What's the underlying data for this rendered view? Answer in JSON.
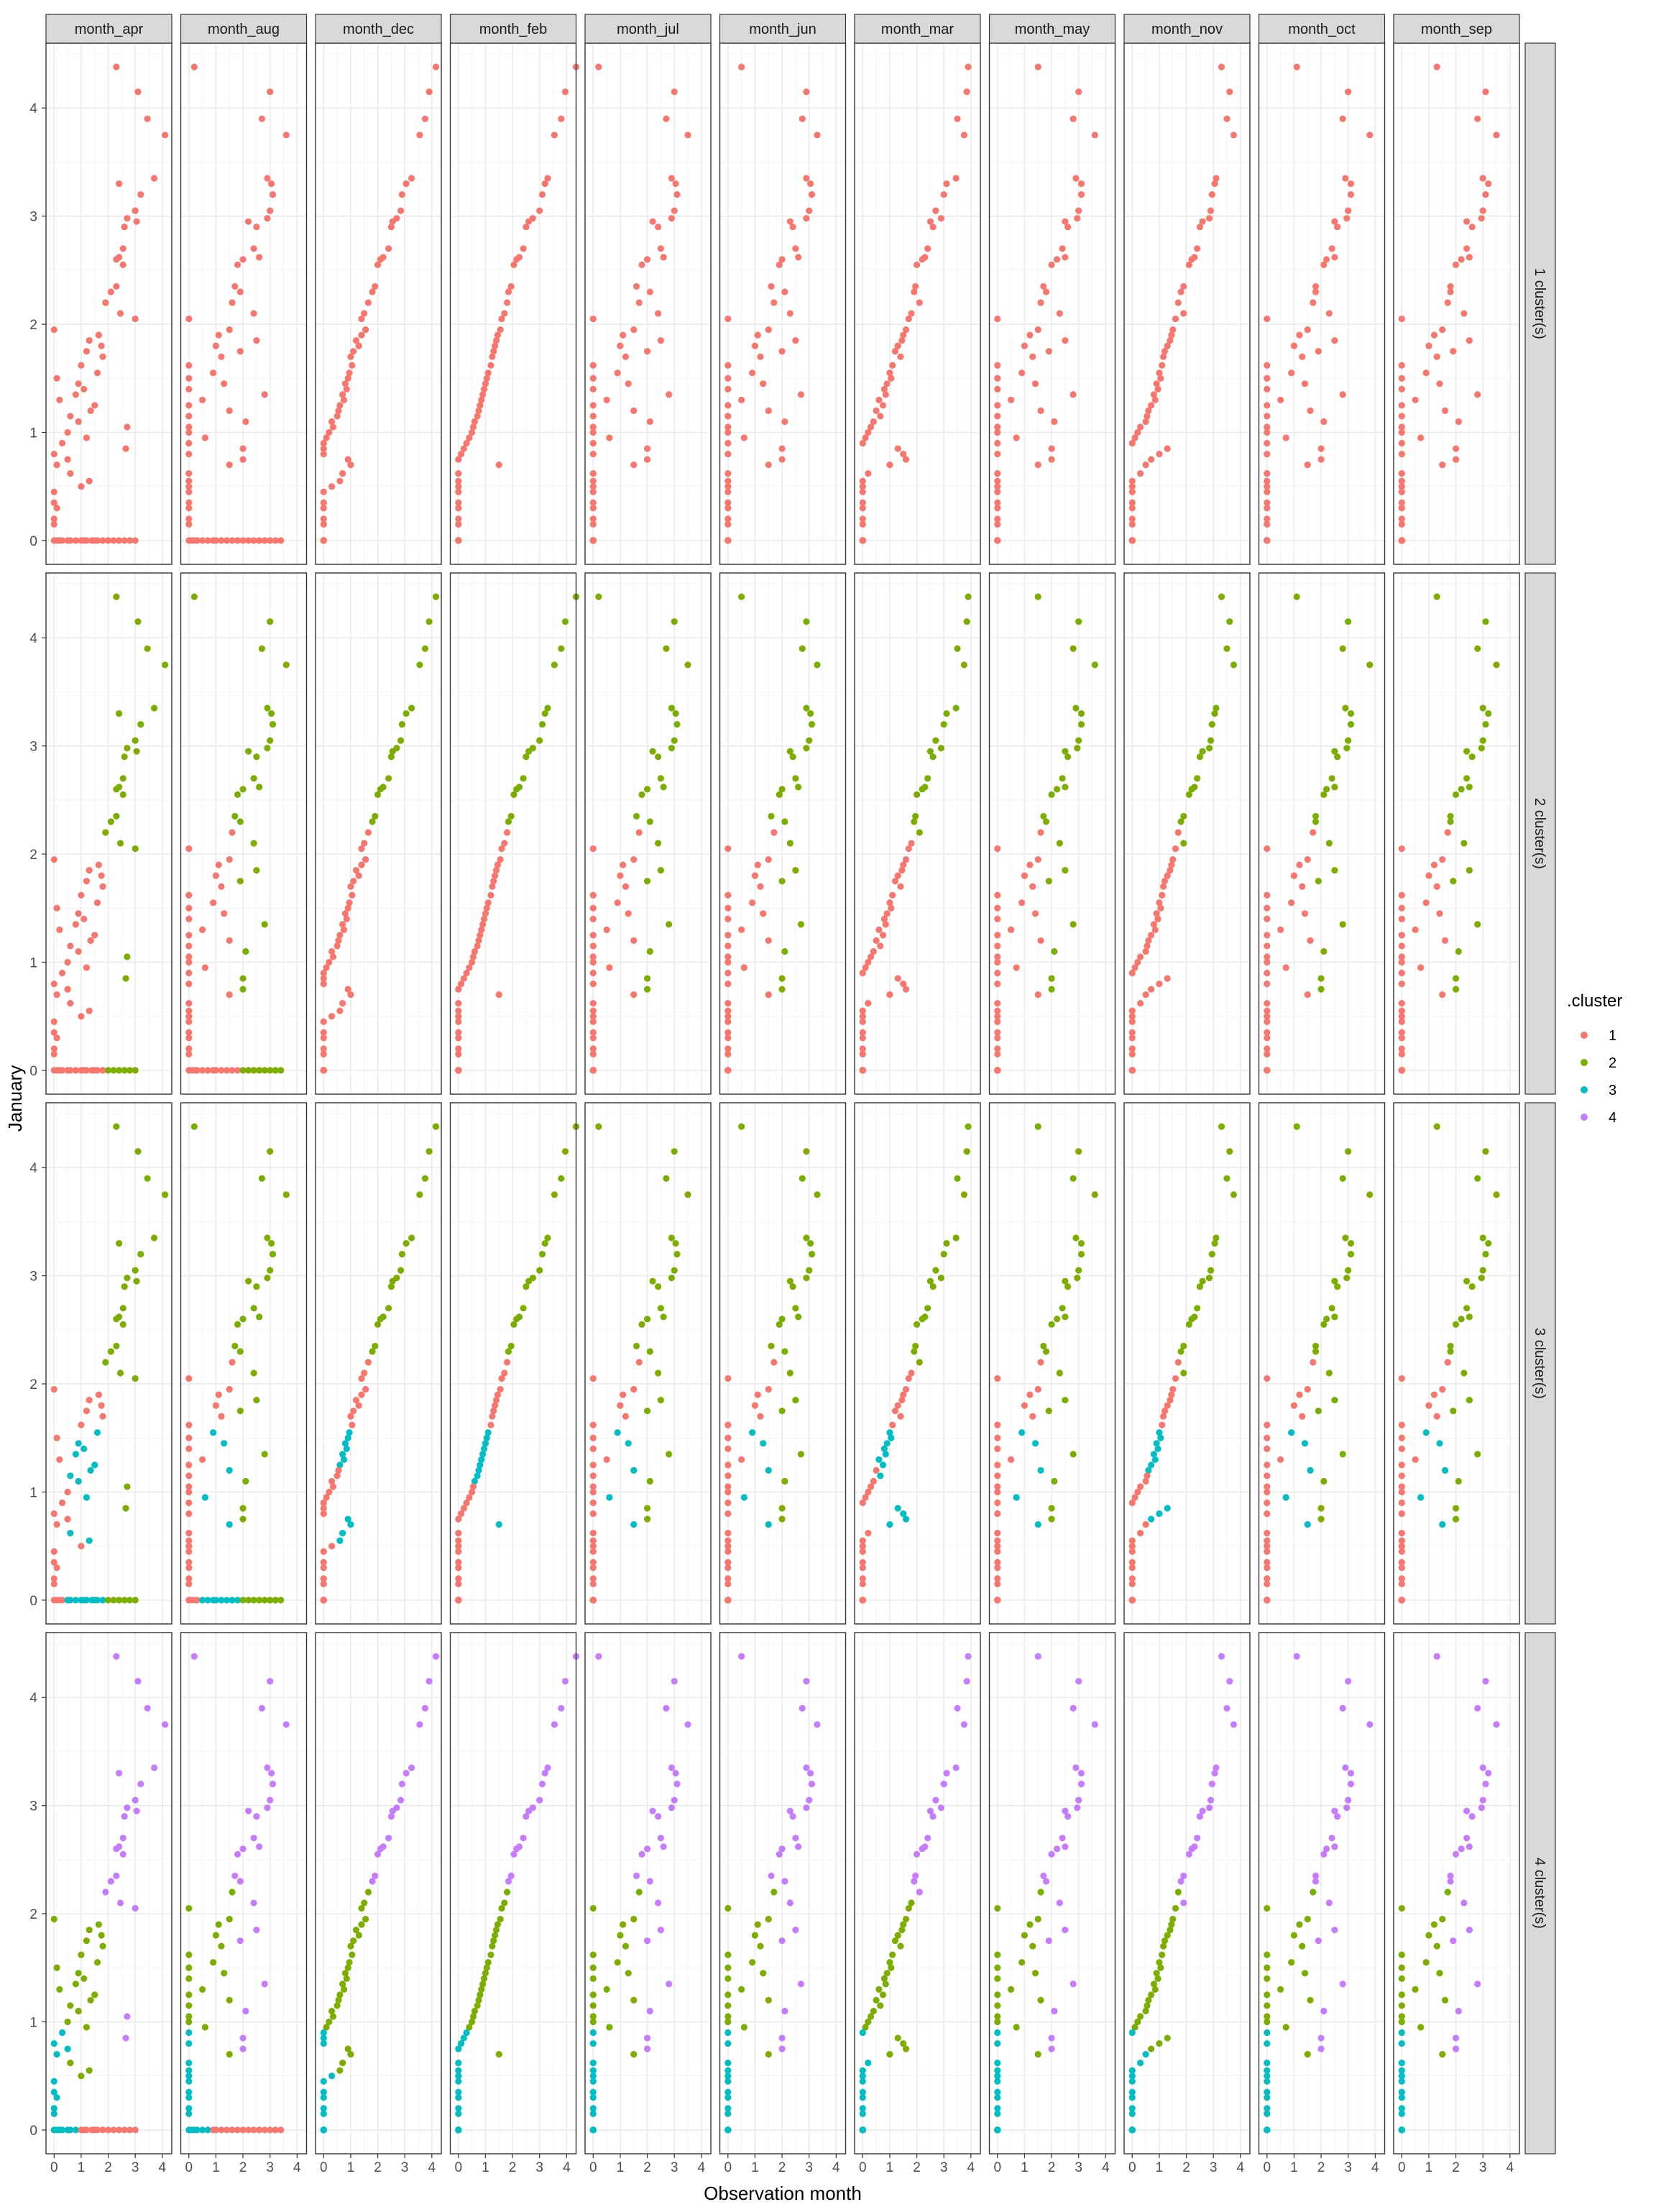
{
  "chart_data": {
    "type": "scatter",
    "facet_columns": [
      "month_apr",
      "month_aug",
      "month_dec",
      "month_feb",
      "month_jul",
      "month_jun",
      "month_mar",
      "month_may",
      "month_nov",
      "month_oct",
      "month_sep"
    ],
    "facet_rows": [
      "1 cluster(s)",
      "2 cluster(s)",
      "3 cluster(s)",
      "4 cluster(s)"
    ],
    "xlabel": "Observation month",
    "ylabel": "January",
    "x_ticks": [
      0,
      1,
      2,
      3,
      4
    ],
    "y_ticks": [
      0,
      1,
      2,
      3,
      4
    ],
    "xlim": [
      -0.3,
      4.35
    ],
    "ylim": [
      -0.22,
      4.6
    ],
    "grid": true,
    "legend": {
      "title": ".cluster",
      "position": "right",
      "entries": [
        {
          "label": "1",
          "color": "#F8766D"
        },
        {
          "label": "2",
          "color": "#7CAE00"
        },
        {
          "label": "3",
          "color": "#00BFC4"
        },
        {
          "label": "4",
          "color": "#C77CFF"
        }
      ]
    },
    "series_note_free": "",
    "points": {
      "january": [
        4.38,
        4.15,
        3.9,
        3.75,
        3.35,
        3.3,
        3.2,
        3.05,
        2.98,
        2.95,
        2.9,
        2.7,
        2.62,
        2.6,
        2.55,
        2.35,
        2.3,
        2.2,
        2.1,
        2.05,
        1.95,
        1.9,
        1.85,
        1.8,
        1.75,
        1.7,
        1.62,
        1.55,
        1.5,
        1.45,
        1.4,
        1.35,
        1.3,
        1.25,
        1.2,
        1.15,
        1.1,
        1.05,
        1.0,
        0.95,
        0.9,
        0.85,
        0.8,
        0.75,
        0.7,
        0.62,
        0.55,
        0.5,
        0.45,
        0.35,
        0.3,
        0.2,
        0.15,
        0.0,
        0.0,
        0.0,
        0.0,
        0.0,
        0.0,
        0.0,
        0.0,
        0.0,
        0.0,
        0.0,
        0.0,
        0.0,
        0.0,
        0.0,
        0.0,
        0.0,
        0.0,
        0.0,
        0.0
      ],
      "month_apr": [
        2.3,
        3.1,
        3.45,
        4.1,
        3.7,
        2.4,
        3.2,
        3.0,
        2.7,
        3.05,
        2.6,
        2.55,
        2.4,
        2.3,
        2.55,
        2.3,
        2.1,
        1.9,
        2.45,
        3.0,
        0.0,
        1.65,
        1.3,
        1.75,
        1.2,
        1.8,
        1.0,
        1.6,
        0.1,
        0.9,
        1.1,
        0.8,
        0.2,
        1.5,
        1.35,
        0.6,
        0.9,
        2.7,
        0.5,
        1.2,
        0.3,
        2.65,
        0.0,
        0.5,
        0.1,
        0.6,
        1.3,
        1.0,
        0.0,
        0.0,
        0.1,
        0.0,
        0.0,
        0.0,
        0.1,
        0.2,
        0.3,
        0.5,
        0.6,
        0.8,
        1.0,
        1.1,
        1.2,
        1.4,
        1.5,
        1.6,
        1.8,
        2.0,
        2.2,
        2.4,
        2.6,
        2.8,
        3.0
      ],
      "month_aug": [
        0.2,
        3.0,
        2.7,
        3.6,
        2.9,
        3.05,
        3.1,
        3.0,
        2.9,
        2.2,
        2.5,
        2.4,
        2.6,
        2.0,
        1.8,
        1.7,
        1.9,
        1.6,
        2.4,
        0.0,
        1.5,
        1.1,
        2.5,
        1.0,
        1.9,
        1.2,
        0.0,
        0.9,
        0.0,
        1.3,
        0.0,
        2.8,
        0.5,
        0.0,
        1.5,
        0.0,
        2.1,
        0.0,
        0.0,
        0.6,
        0.0,
        2.0,
        0.0,
        2.0,
        1.5,
        0.0,
        0.0,
        0.0,
        0.0,
        0.0,
        0.0,
        0.0,
        0.0,
        0.0,
        0.1,
        0.2,
        0.3,
        0.5,
        0.7,
        0.9,
        1.0,
        1.2,
        1.4,
        1.6,
        1.8,
        2.0,
        2.2,
        2.4,
        2.6,
        2.8,
        3.0,
        3.2,
        3.4
      ],
      "month_dec": [
        4.15,
        3.9,
        3.75,
        3.55,
        3.25,
        3.05,
        2.9,
        2.85,
        2.7,
        2.55,
        2.5,
        2.4,
        2.2,
        2.1,
        2.0,
        1.9,
        1.8,
        1.65,
        1.5,
        1.4,
        1.55,
        1.4,
        1.2,
        1.3,
        1.1,
        1.0,
        1.05,
        0.95,
        0.9,
        0.8,
        0.85,
        0.7,
        0.75,
        0.6,
        0.55,
        0.5,
        0.3,
        0.35,
        0.2,
        0.1,
        0.0,
        0.0,
        0.0,
        0.9,
        1.0,
        0.7,
        0.6,
        0.3,
        0.0,
        0.0,
        0.0,
        0.0,
        0.0,
        0.0,
        0.0,
        0.0,
        0.0,
        0.0,
        0.0,
        0.0,
        0.0,
        0.0,
        0.0,
        0.0,
        0.0,
        0.0,
        0.0,
        0.0,
        0.0,
        0.0,
        0.0,
        0.0,
        0.0
      ],
      "month_feb": [
        4.35,
        3.95,
        3.8,
        3.55,
        3.3,
        3.2,
        3.1,
        3.0,
        2.75,
        2.6,
        2.5,
        2.4,
        2.25,
        2.15,
        2.05,
        1.95,
        1.85,
        1.8,
        1.7,
        1.6,
        1.55,
        1.45,
        1.4,
        1.35,
        1.3,
        1.25,
        1.2,
        1.1,
        1.05,
        1.0,
        0.95,
        0.9,
        0.85,
        0.8,
        0.75,
        0.7,
        0.6,
        0.55,
        0.5,
        0.4,
        0.3,
        0.2,
        0.1,
        0.0,
        1.5,
        0.0,
        0.0,
        0.0,
        0.0,
        0.0,
        0.0,
        0.0,
        0.0,
        0.0,
        0.0,
        0.0,
        0.0,
        0.0,
        0.0,
        0.0,
        0.0,
        0.0,
        0.0,
        0.0,
        0.0,
        0.0,
        0.0,
        0.0,
        0.0,
        0.0,
        0.0,
        0.0,
        0.0
      ],
      "month_jul": [
        0.2,
        3.0,
        2.7,
        3.5,
        2.9,
        3.05,
        3.1,
        3.0,
        2.9,
        2.2,
        2.4,
        2.5,
        2.6,
        2.0,
        1.8,
        1.6,
        2.1,
        1.7,
        2.4,
        0.0,
        1.5,
        1.1,
        2.5,
        1.0,
        2.0,
        1.2,
        0.0,
        0.9,
        0.0,
        1.3,
        0.0,
        2.8,
        0.5,
        0.0,
        1.5,
        0.0,
        2.1,
        0.0,
        0.0,
        0.6,
        0.0,
        2.0,
        0.0,
        2.0,
        1.5,
        0.0,
        0.0,
        0.0,
        0.0,
        0.0,
        0.0,
        0.0,
        0.0,
        0.0,
        0.0,
        0.0,
        0.0,
        0.0,
        0.0,
        0.0,
        0.0,
        0.0,
        0.0,
        0.0,
        0.0,
        0.0,
        0.0,
        0.0,
        0.0,
        0.0,
        0.0,
        0.0,
        0.0
      ],
      "month_jun": [
        0.5,
        2.9,
        2.75,
        3.3,
        2.9,
        3.05,
        3.1,
        3.0,
        2.9,
        2.3,
        2.4,
        2.5,
        2.6,
        2.0,
        1.9,
        1.6,
        2.1,
        1.7,
        2.3,
        0.0,
        1.5,
        1.1,
        2.5,
        1.0,
        2.0,
        1.2,
        0.0,
        0.9,
        0.0,
        1.3,
        0.0,
        2.7,
        0.5,
        0.0,
        1.5,
        0.0,
        2.1,
        0.0,
        0.0,
        0.6,
        0.0,
        2.0,
        0.0,
        2.0,
        1.5,
        0.0,
        0.0,
        0.0,
        0.0,
        0.0,
        0.0,
        0.0,
        0.0,
        0.0,
        0.0,
        0.0,
        0.0,
        0.0,
        0.0,
        0.0,
        0.0,
        0.0,
        0.0,
        0.0,
        0.0,
        0.0,
        0.0,
        0.0,
        0.0,
        0.0,
        0.0,
        0.0,
        0.0
      ],
      "month_mar": [
        3.9,
        3.85,
        3.5,
        3.75,
        3.45,
        3.1,
        3.0,
        2.7,
        2.9,
        2.5,
        2.6,
        2.4,
        2.3,
        2.2,
        2.0,
        1.95,
        1.9,
        2.1,
        1.8,
        1.7,
        1.6,
        1.5,
        1.45,
        1.3,
        1.2,
        1.4,
        1.1,
        1.0,
        1.05,
        0.9,
        0.8,
        0.85,
        0.6,
        0.75,
        0.5,
        0.65,
        0.4,
        0.3,
        0.2,
        0.1,
        0.0,
        1.3,
        1.5,
        1.6,
        1.0,
        0.2,
        0.0,
        0.0,
        0.0,
        0.0,
        0.0,
        0.0,
        0.0,
        0.0,
        0.0,
        0.0,
        0.0,
        0.0,
        0.0,
        0.0,
        0.0,
        0.0,
        0.0,
        0.0,
        0.0,
        0.0,
        0.0,
        0.0,
        0.0,
        0.0,
        0.0,
        0.0,
        0.0
      ],
      "month_may": [
        1.5,
        3.0,
        2.8,
        3.6,
        2.9,
        3.1,
        3.1,
        3.0,
        2.95,
        2.5,
        2.6,
        2.4,
        2.5,
        2.2,
        2.0,
        1.7,
        1.8,
        1.6,
        2.3,
        0.0,
        1.5,
        1.2,
        2.5,
        1.0,
        1.9,
        1.3,
        0.0,
        0.9,
        0.0,
        1.4,
        0.0,
        2.8,
        0.5,
        0.0,
        1.6,
        0.0,
        2.1,
        0.0,
        0.0,
        0.7,
        0.0,
        2.0,
        0.0,
        2.0,
        1.5,
        0.0,
        0.0,
        0.0,
        0.0,
        0.0,
        0.0,
        0.0,
        0.0,
        0.0,
        0.0,
        0.0,
        0.0,
        0.0,
        0.0,
        0.0,
        0.0,
        0.0,
        0.0,
        0.0,
        0.0,
        0.0,
        0.0,
        0.0,
        0.0,
        0.0,
        0.0,
        0.0,
        0.0
      ],
      "month_nov": [
        3.3,
        3.6,
        3.5,
        3.75,
        3.1,
        3.05,
        2.95,
        2.9,
        2.85,
        2.6,
        2.5,
        2.4,
        2.3,
        2.2,
        2.1,
        1.9,
        1.8,
        1.7,
        1.9,
        1.6,
        1.5,
        1.45,
        1.4,
        1.3,
        1.2,
        1.15,
        1.1,
        1.0,
        1.05,
        0.9,
        0.95,
        0.8,
        0.85,
        0.7,
        0.6,
        0.55,
        0.5,
        0.3,
        0.2,
        0.1,
        0.0,
        1.3,
        1.0,
        0.7,
        0.5,
        0.3,
        0.0,
        0.0,
        0.0,
        0.0,
        0.0,
        0.0,
        0.0,
        0.0,
        0.0,
        0.0,
        0.0,
        0.0,
        0.0,
        0.0,
        0.0,
        0.0,
        0.0,
        0.0,
        0.0,
        0.0,
        0.0,
        0.0,
        0.0,
        0.0,
        0.0,
        0.0,
        0.0
      ],
      "month_oct": [
        1.1,
        3.0,
        2.8,
        3.8,
        2.9,
        3.1,
        3.1,
        3.0,
        2.95,
        2.5,
        2.6,
        2.4,
        2.5,
        2.2,
        2.1,
        1.8,
        1.8,
        1.7,
        2.3,
        0.0,
        1.5,
        1.2,
        2.5,
        1.0,
        1.9,
        1.3,
        0.0,
        0.9,
        0.0,
        1.4,
        0.0,
        2.8,
        0.5,
        0.0,
        1.6,
        0.0,
        2.1,
        0.0,
        0.0,
        0.7,
        0.0,
        2.0,
        0.0,
        2.0,
        1.5,
        0.0,
        0.0,
        0.0,
        0.0,
        0.0,
        0.0,
        0.0,
        0.0,
        0.0,
        0.0,
        0.0,
        0.0,
        0.0,
        0.0,
        0.0,
        0.0,
        0.0,
        0.0,
        0.0,
        0.0,
        0.0,
        0.0,
        0.0,
        0.0,
        0.0,
        0.0,
        0.0,
        0.0
      ],
      "month_sep": [
        1.3,
        3.1,
        2.8,
        3.5,
        3.0,
        3.2,
        3.1,
        3.0,
        2.95,
        2.4,
        2.6,
        2.4,
        2.5,
        2.2,
        2.0,
        1.8,
        1.8,
        1.7,
        2.3,
        0.0,
        1.5,
        1.2,
        2.5,
        1.0,
        1.9,
        1.3,
        0.0,
        0.9,
        0.0,
        1.4,
        0.0,
        2.8,
        0.5,
        0.0,
        1.6,
        0.0,
        2.1,
        0.0,
        0.0,
        0.7,
        0.0,
        2.0,
        0.0,
        2.0,
        1.5,
        0.0,
        0.0,
        0.0,
        0.0,
        0.0,
        0.0,
        0.0,
        0.0,
        0.0,
        0.0,
        0.0,
        0.0,
        0.0,
        0.0,
        0.0,
        0.0,
        0.0,
        0.0,
        0.0,
        0.0,
        0.0,
        0.0,
        0.0,
        0.0,
        0.0,
        0.0,
        0.0,
        0.0
      ]
    },
    "cluster_assignments": {
      "1 cluster(s)": [
        1
      ],
      "2 cluster(s)": [
        1,
        2
      ],
      "3 cluster(s)": [
        1,
        2,
        3
      ],
      "4 cluster(s)": [
        1,
        2,
        3,
        4
      ]
    }
  }
}
